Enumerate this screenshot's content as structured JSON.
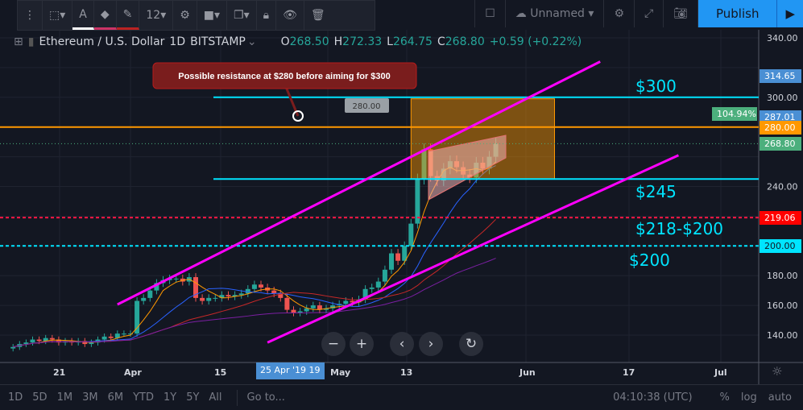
{
  "toolbar": {
    "font_size": "12",
    "icons": [
      "drag-handle-icon",
      "select-area-icon",
      "text-color-icon",
      "fill-bucket-icon",
      "pencil-icon",
      "gear-icon",
      "layers-icon",
      "clone-icon",
      "lock-icon",
      "eye-icon",
      "trash-icon"
    ]
  },
  "topbar": {
    "layout_name": "Unnamed",
    "publish": "Publish"
  },
  "legend": {
    "symbol": "Ethereum / U.S. Dollar",
    "interval": "1D",
    "exchange": "BITSTAMP",
    "o_label": "O",
    "o": "268.50",
    "h_label": "H",
    "h": "272.33",
    "l_label": "L",
    "l": "264.75",
    "c_label": "C",
    "c": "268.80",
    "change": "+0.59 (+0.22%)"
  },
  "annotations": {
    "callout": "Possible resistance at $280 before aiming for $300",
    "price_tag": "280.00",
    "l300": "$300",
    "l245": "$245",
    "l218": "$218-$200",
    "l200": "$200"
  },
  "price_labels": [
    {
      "text": "314.65",
      "color": "#4a8fd4"
    },
    {
      "text": "287.01",
      "color": "#4a8fd4"
    },
    {
      "text": "280.00",
      "color": "#ff9800"
    },
    {
      "text": "268.80",
      "color": "#4caf7d"
    },
    {
      "text": "219.06",
      "color": "#ff0000"
    },
    {
      "text": "200.00",
      "color": "#00e5ff"
    }
  ],
  "percent_badge": "104.94%",
  "crosshair_date": "25 Apr '19",
  "crosshair_date_suffix": "19",
  "bottom": {
    "ranges": [
      "1D",
      "5D",
      "1M",
      "3M",
      "6M",
      "YTD",
      "1Y",
      "5Y",
      "All"
    ],
    "goto": "Go to...",
    "time": "04:10:38 (UTC)",
    "pct": "%",
    "log": "log",
    "auto": "auto"
  },
  "chart_data": {
    "type": "candlestick",
    "start_date": "2019-03-14",
    "closes": [
      132,
      134,
      135,
      137,
      136,
      138,
      137,
      135,
      136,
      135,
      136,
      134,
      135,
      137,
      139,
      138,
      141,
      141,
      141,
      163,
      165,
      170,
      175,
      177,
      178,
      178,
      176,
      179,
      165,
      163,
      165,
      165,
      167,
      166,
      167,
      168,
      171,
      174,
      172,
      170,
      168,
      165,
      157,
      155,
      156,
      158,
      160,
      157,
      158,
      160,
      161,
      163,
      162,
      164,
      171,
      172,
      176,
      184,
      195,
      190,
      200,
      215,
      245,
      265,
      247,
      244,
      252,
      257,
      253,
      248,
      246,
      256,
      252,
      260,
      268.8
    ],
    "y_ticks": [
      140,
      160,
      180,
      200,
      220,
      240,
      260,
      280,
      300,
      320,
      340
    ],
    "x_ticks": [
      "21",
      "Apr",
      "15",
      "May",
      "13",
      "Jun",
      "17",
      "Jul"
    ],
    "ylim": [
      130,
      350
    ],
    "horizontal_levels": [
      {
        "price": 300,
        "color": "#00e5ff"
      },
      {
        "price": 245,
        "color": "#00e5ff"
      },
      {
        "price": 280,
        "color": "#ff9800"
      },
      {
        "price": 219.06,
        "color": "#ff1744",
        "dashed": true
      },
      {
        "price": 200,
        "color": "#00e5ff",
        "dashed": true
      }
    ],
    "trendlines": [
      {
        "from": [
          "2019-03-30",
          160.6
        ],
        "to": [
          "2019-06-12",
          324
        ],
        "color": "#ff00ff"
      },
      {
        "from": [
          "2019-04-22",
          135
        ],
        "to": [
          "2019-06-24",
          261
        ],
        "color": "#ff00ff"
      }
    ],
    "rectangle": {
      "from": [
        "2019-05-14",
        299
      ],
      "to": [
        "2019-06-05",
        245
      ],
      "color": "#ff9800"
    },
    "colors": {
      "up": "#26a69a",
      "down": "#ef5350"
    }
  }
}
